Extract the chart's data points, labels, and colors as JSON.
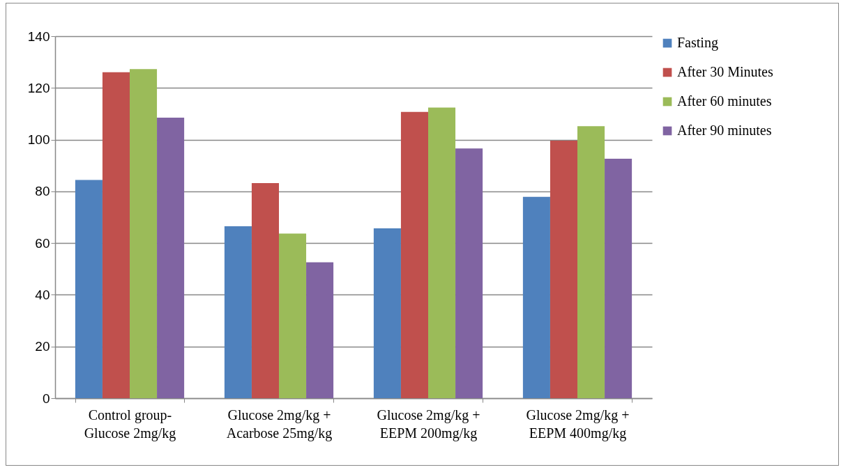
{
  "chart_data": {
    "type": "bar",
    "categories": [
      "Control group-Glucose 2mg/kg",
      "Glucose 2mg/kg + Acarbose 25mg/kg",
      "Glucose 2mg/kg + EEPM 200mg/kg",
      "Glucose 2mg/kg + EEPM 400mg/kg"
    ],
    "series": [
      {
        "name": "Fasting",
        "color": "#4f81bd",
        "values": [
          84.4,
          66.5,
          65.7,
          77.9
        ]
      },
      {
        "name": "After 30 Minutes",
        "color": "#c0504d",
        "values": [
          126.1,
          83.2,
          110.7,
          99.6
        ]
      },
      {
        "name": "After 60 minutes",
        "color": "#9bbb59",
        "values": [
          127.3,
          63.7,
          112.4,
          105.2
        ]
      },
      {
        "name": "After 90 minutes",
        "color": "#8064a2",
        "values": [
          108.5,
          52.6,
          96.6,
          92.6
        ]
      }
    ],
    "ylim": [
      0,
      140
    ],
    "yticks": [
      0,
      20,
      40,
      60,
      80,
      100,
      120,
      140
    ],
    "grid": "y",
    "legend": "right"
  }
}
